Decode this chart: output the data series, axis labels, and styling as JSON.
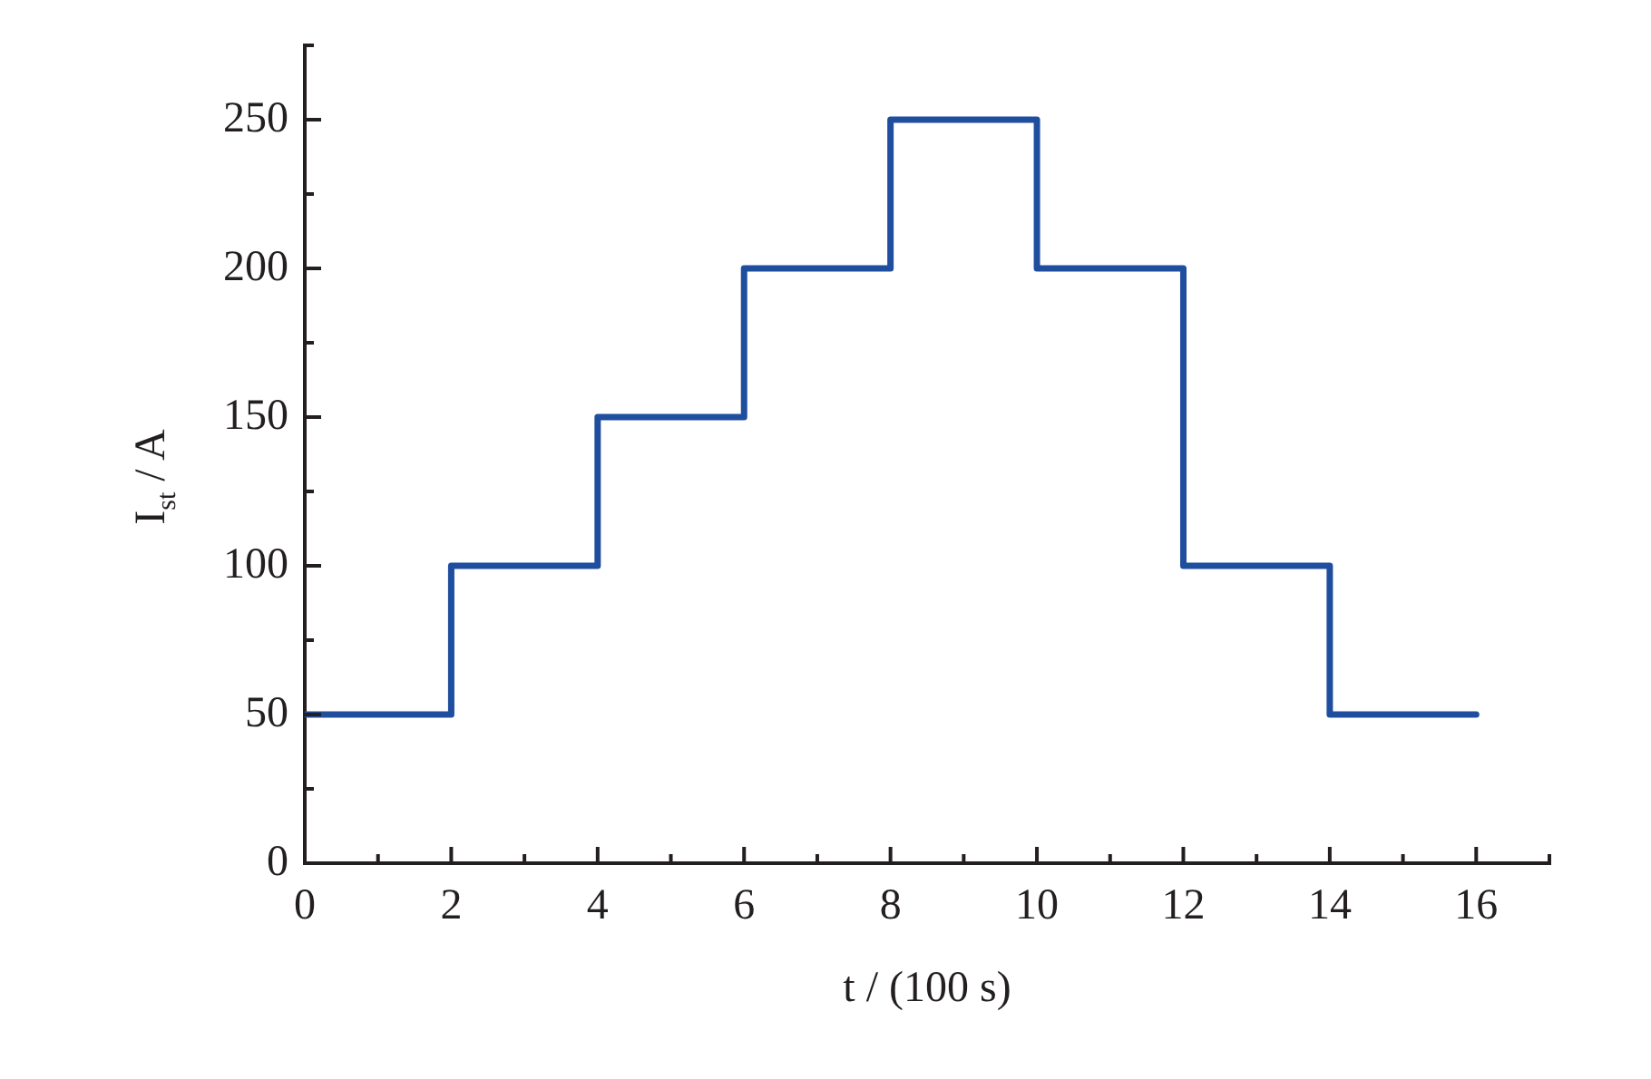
{
  "chart_data": {
    "type": "step",
    "xlabel": "t / (100 s)",
    "ylabel": "I$_{st}$ / A",
    "x": [
      0,
      2,
      4,
      6,
      8,
      10,
      12,
      14,
      16
    ],
    "values": [
      50,
      100,
      150,
      200,
      250,
      200,
      100,
      50,
      50
    ],
    "color": "#1f4e9f",
    "xlim": [
      0,
      17
    ],
    "ylim": [
      0,
      275
    ],
    "xticks": [
      0,
      {
        "value": 1,
        "label": null
      },
      2,
      {
        "value": 3,
        "label": null
      },
      4,
      {
        "value": 5,
        "label": null
      },
      6,
      {
        "value": 7,
        "label": null
      },
      8,
      {
        "value": 9,
        "label": null
      },
      10,
      {
        "value": 11,
        "label": null
      },
      12,
      {
        "value": 13,
        "label": null
      },
      14,
      {
        "value": 15,
        "label": null
      },
      16,
      {
        "value": 17,
        "label": null
      }
    ],
    "yticks": [
      0,
      {
        "value": 25,
        "label": null
      },
      50,
      {
        "value": 75,
        "label": null
      },
      100,
      {
        "value": 125,
        "label": null
      },
      150,
      {
        "value": 175,
        "label": null
      },
      200,
      {
        "value": 225,
        "label": null
      },
      250,
      {
        "value": 275,
        "label": null
      }
    ],
    "grid": false,
    "legend": false
  }
}
